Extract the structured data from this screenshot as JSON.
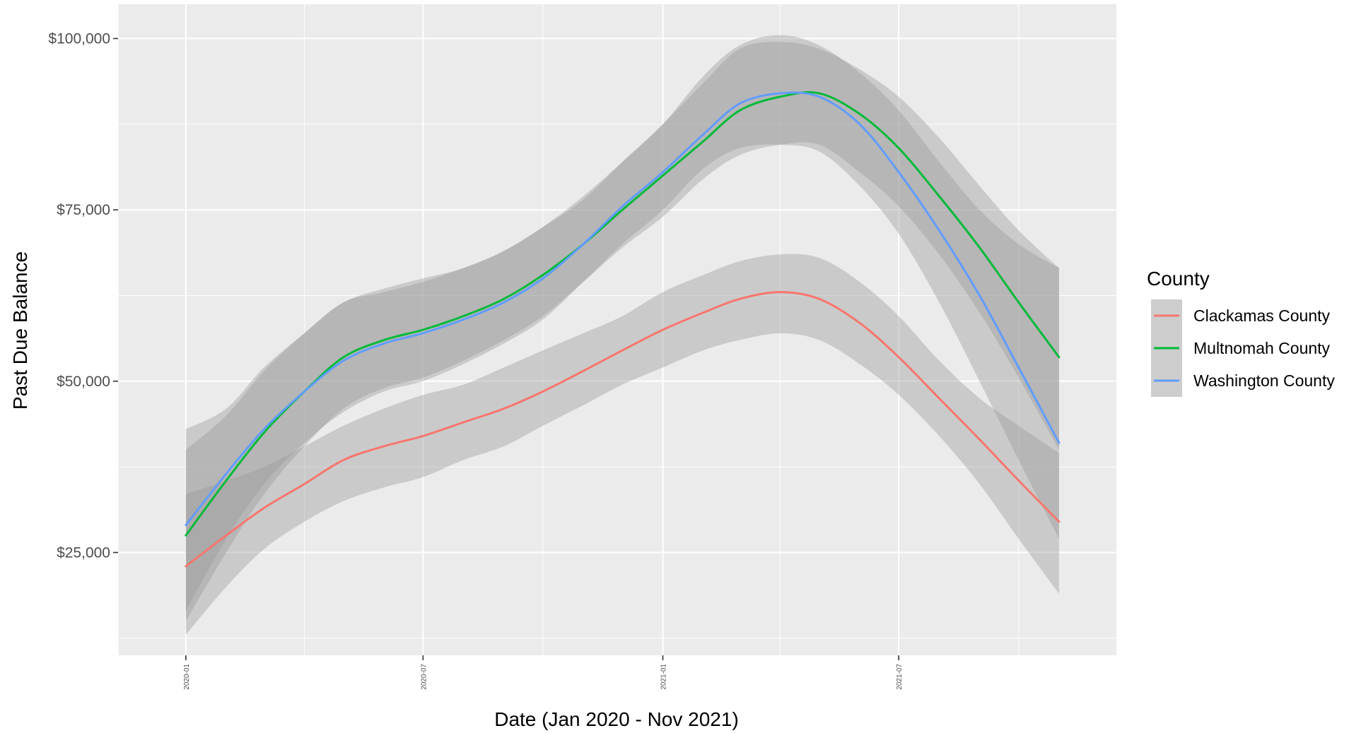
{
  "chart_data": {
    "type": "line",
    "title": "",
    "xlabel": "Date (Jan 2020 - Nov 2021)",
    "ylabel": "Past Due Balance",
    "x_type": "date",
    "xlim": [
      "2019-11-10",
      "2021-12-15"
    ],
    "ylim": [
      10000,
      105000
    ],
    "grid": true,
    "x_ticks": [
      {
        "value": "2020-01-01",
        "label": "2020-01"
      },
      {
        "value": "2020-07-01",
        "label": "2020-07"
      },
      {
        "value": "2021-01-01",
        "label": "2021-01"
      },
      {
        "value": "2021-07-01",
        "label": "2021-07"
      }
    ],
    "x_minor_ticks": [
      "2019-11-10",
      "2020-04-01",
      "2020-10-01",
      "2021-04-01",
      "2021-10-01"
    ],
    "y_ticks": [
      {
        "value": 25000,
        "label": "$25,000"
      },
      {
        "value": 50000,
        "label": "$50,000"
      },
      {
        "value": 75000,
        "label": "$75,000"
      },
      {
        "value": 100000,
        "label": "$100,000"
      }
    ],
    "y_minor_ticks": [
      12500,
      37500,
      62500,
      87500
    ],
    "legend": {
      "title": "County",
      "position": "right"
    },
    "series": [
      {
        "name": "Clackamas County",
        "color": "#F8766D",
        "x": [
          "2020-01-01",
          "2020-02-01",
          "2020-03-01",
          "2020-04-01",
          "2020-05-01",
          "2020-06-01",
          "2020-07-01",
          "2020-08-01",
          "2020-09-01",
          "2020-10-01",
          "2020-11-01",
          "2020-12-01",
          "2021-01-01",
          "2021-02-01",
          "2021-03-01",
          "2021-04-01",
          "2021-05-01",
          "2021-06-01",
          "2021-07-01",
          "2021-08-01",
          "2021-09-01",
          "2021-10-01",
          "2021-11-01"
        ],
        "y": [
          23000,
          27500,
          31500,
          35000,
          38500,
          40500,
          42000,
          44000,
          46000,
          48500,
          51500,
          54500,
          57500,
          60000,
          62000,
          63000,
          62000,
          58500,
          53500,
          47500,
          41500,
          35500,
          29500
        ],
        "lower": [
          13000,
          20000,
          25500,
          29500,
          32500,
          34500,
          36000,
          38500,
          40500,
          43500,
          46500,
          49500,
          52000,
          54500,
          56000,
          57000,
          56000,
          52500,
          48000,
          42000,
          35000,
          27000,
          19000
        ],
        "upper": [
          33500,
          35500,
          37500,
          40500,
          43500,
          46000,
          48000,
          49500,
          52000,
          54500,
          57000,
          59500,
          63000,
          65500,
          67500,
          68500,
          68000,
          64500,
          59500,
          53000,
          47500,
          43500,
          39500
        ]
      },
      {
        "name": "Multnomah County",
        "color": "#00BA38",
        "x": [
          "2020-01-01",
          "2020-02-01",
          "2020-03-01",
          "2020-04-01",
          "2020-05-01",
          "2020-06-01",
          "2020-07-01",
          "2020-08-01",
          "2020-09-01",
          "2020-10-01",
          "2020-11-01",
          "2020-12-01",
          "2021-01-01",
          "2021-02-01",
          "2021-03-01",
          "2021-04-01",
          "2021-05-01",
          "2021-06-01",
          "2021-07-01",
          "2021-08-01",
          "2021-09-01",
          "2021-10-01",
          "2021-11-01"
        ],
        "y": [
          27500,
          35500,
          42500,
          48500,
          53500,
          56000,
          57500,
          59500,
          62000,
          65500,
          70000,
          75000,
          80000,
          85000,
          89500,
          91500,
          92000,
          89000,
          84000,
          77000,
          69500,
          61500,
          53500
        ],
        "lower": [
          15000,
          25000,
          33500,
          40500,
          46000,
          49000,
          50500,
          53000,
          56000,
          59500,
          64500,
          69500,
          74000,
          79500,
          83000,
          84500,
          84500,
          80500,
          75500,
          68500,
          60000,
          50500,
          40000
        ],
        "upper": [
          40000,
          45000,
          51500,
          57000,
          61500,
          63500,
          65000,
          66500,
          69000,
          72500,
          77000,
          82000,
          87500,
          93500,
          98500,
          99500,
          98500,
          95500,
          91500,
          85500,
          78500,
          72000,
          66500
        ]
      },
      {
        "name": "Washington County",
        "color": "#619CFF",
        "x": [
          "2020-01-01",
          "2020-02-01",
          "2020-03-01",
          "2020-04-01",
          "2020-05-01",
          "2020-06-01",
          "2020-07-01",
          "2020-08-01",
          "2020-09-01",
          "2020-10-01",
          "2020-11-01",
          "2020-12-01",
          "2021-01-01",
          "2021-02-01",
          "2021-03-01",
          "2021-04-01",
          "2021-05-01",
          "2021-06-01",
          "2021-07-01",
          "2021-08-01",
          "2021-09-01",
          "2021-10-01",
          "2021-11-01"
        ],
        "y": [
          29000,
          36500,
          43000,
          48500,
          53000,
          55500,
          57000,
          59000,
          61500,
          65000,
          70000,
          75500,
          80500,
          86000,
          90500,
          92000,
          91500,
          87500,
          80500,
          72000,
          62500,
          52000,
          41000
        ],
        "lower": [
          16500,
          27000,
          35000,
          41000,
          45500,
          48500,
          50000,
          52500,
          55500,
          59000,
          64500,
          70000,
          75000,
          81000,
          84000,
          84500,
          83500,
          78500,
          71500,
          61500,
          50000,
          38500,
          27000
        ],
        "upper": [
          43000,
          46000,
          52000,
          57000,
          61500,
          63000,
          64500,
          66500,
          69000,
          72500,
          76500,
          82000,
          87500,
          94500,
          99000,
          100500,
          99000,
          95000,
          89500,
          82000,
          75000,
          70000,
          66500
        ]
      }
    ]
  }
}
